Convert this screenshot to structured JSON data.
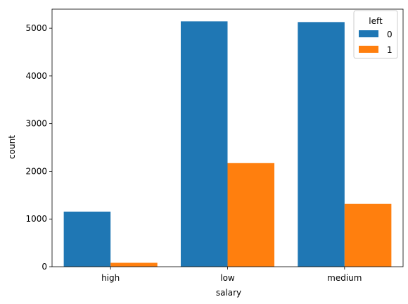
{
  "chart_data": {
    "type": "bar",
    "title": "",
    "xlabel": "salary",
    "ylabel": "count",
    "categories": [
      "high",
      "low",
      "medium"
    ],
    "series": [
      {
        "name": "0",
        "values": [
          1155,
          5144,
          5129
        ],
        "color": "#1f77b4"
      },
      {
        "name": "1",
        "values": [
          82,
          2172,
          1317
        ],
        "color": "#ff7f0e"
      }
    ],
    "ylim": [
      0,
      5400
    ],
    "yticks": [
      0,
      1000,
      2000,
      3000,
      4000,
      5000
    ],
    "grid": false,
    "legend": {
      "title": "left",
      "placement": "top-right"
    }
  }
}
